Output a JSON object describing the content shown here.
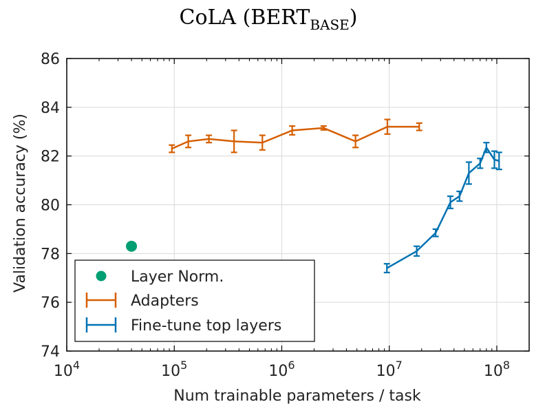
{
  "chart_data": {
    "type": "scatter",
    "title": "CoLA (BERT",
    "title_subscript": "BASE",
    "title_suffix": ")",
    "xlabel": "Num trainable parameters / task",
    "ylabel": "Validation accuracy (%)",
    "xscale": "log",
    "xlim": [
      10000,
      200000000
    ],
    "ylim": [
      74,
      86
    ],
    "yticks": [
      74,
      76,
      78,
      80,
      82,
      84,
      86
    ],
    "xticks": [
      {
        "value": 10000,
        "base": "10",
        "exp": "4"
      },
      {
        "value": 100000,
        "base": "10",
        "exp": "5"
      },
      {
        "value": 1000000,
        "base": "10",
        "exp": "6"
      },
      {
        "value": 10000000,
        "base": "10",
        "exp": "7"
      },
      {
        "value": 100000000,
        "base": "10",
        "exp": "8"
      }
    ],
    "grid": true,
    "legend_position": "bottom-left",
    "series": [
      {
        "name": "Layer Norm.",
        "color": "#009e73",
        "style": "marker",
        "points": [
          {
            "x": 40000,
            "y": 78.3
          }
        ]
      },
      {
        "name": "Adapters",
        "color": "#d55e00",
        "style": "errorbar-line",
        "points": [
          {
            "x": 95000,
            "y": 82.3,
            "err": 0.15
          },
          {
            "x": 135000,
            "y": 82.6,
            "err": 0.25
          },
          {
            "x": 210000,
            "y": 82.7,
            "err": 0.15
          },
          {
            "x": 360000,
            "y": 82.6,
            "err": 0.45
          },
          {
            "x": 660000,
            "y": 82.55,
            "err": 0.3
          },
          {
            "x": 1250000,
            "y": 83.05,
            "err": 0.18
          },
          {
            "x": 2450000,
            "y": 83.15,
            "err": 0.08
          },
          {
            "x": 4850000,
            "y": 82.6,
            "err": 0.25
          },
          {
            "x": 9600000,
            "y": 83.2,
            "err": 0.3
          },
          {
            "x": 19000000,
            "y": 83.2,
            "err": 0.15
          }
        ]
      },
      {
        "name": "Fine-tune top layers",
        "color": "#0072b2",
        "style": "errorbar-line",
        "points": [
          {
            "x": 9500000,
            "y": 77.4,
            "err": 0.18
          },
          {
            "x": 18000000,
            "y": 78.1,
            "err": 0.2
          },
          {
            "x": 27000000,
            "y": 78.85,
            "err": 0.15
          },
          {
            "x": 37000000,
            "y": 80.1,
            "err": 0.25
          },
          {
            "x": 45000000,
            "y": 80.35,
            "err": 0.2
          },
          {
            "x": 55000000,
            "y": 81.3,
            "err": 0.45
          },
          {
            "x": 70000000,
            "y": 81.7,
            "err": 0.2
          },
          {
            "x": 80000000,
            "y": 82.35,
            "err": 0.2
          },
          {
            "x": 95000000,
            "y": 81.85,
            "err": 0.35
          },
          {
            "x": 105000000,
            "y": 81.8,
            "err": 0.35
          }
        ]
      }
    ]
  }
}
